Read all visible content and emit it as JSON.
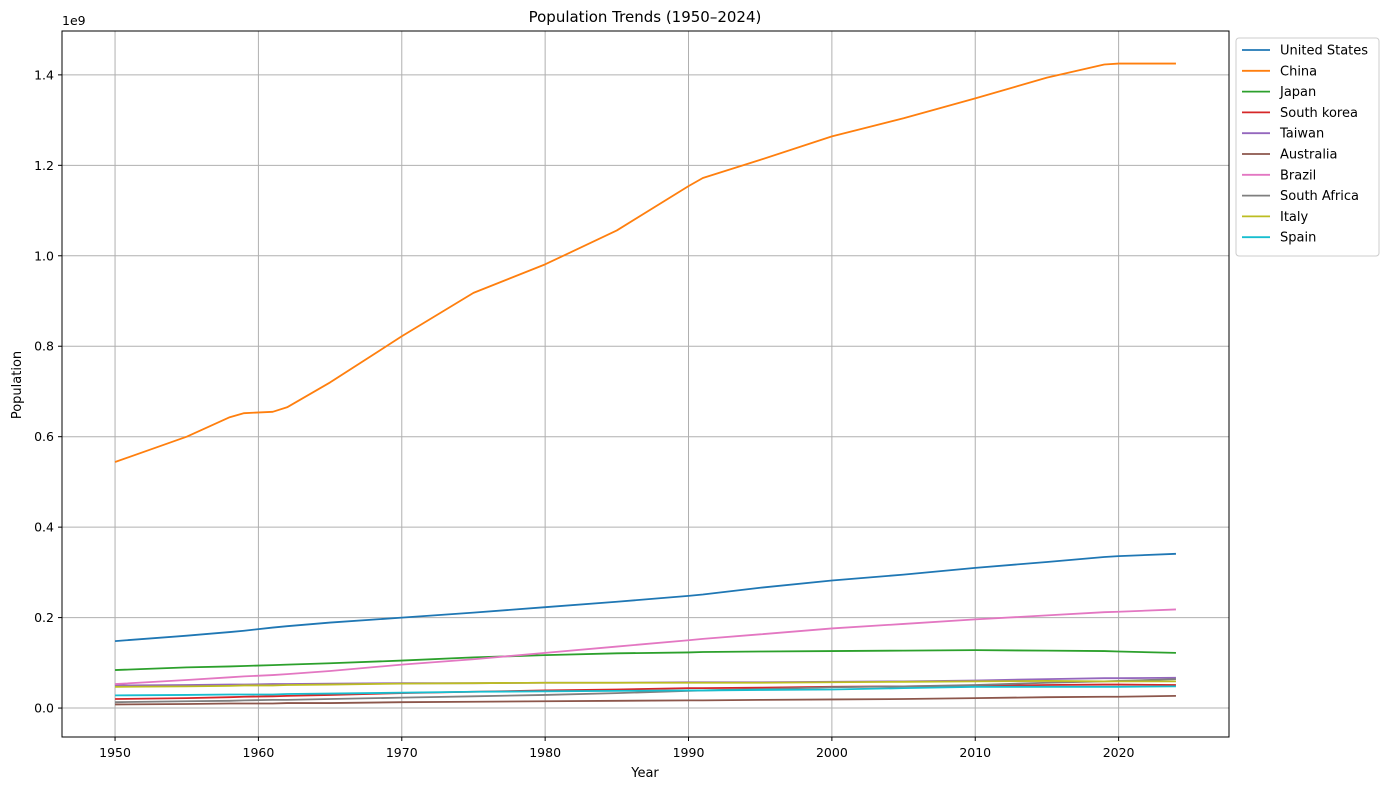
{
  "chart_data": {
    "type": "line",
    "title": "Population Trends (1950–2024)",
    "xlabel": "Year",
    "ylabel": "Population",
    "y_offset_text": "1e9",
    "xlim": [
      1946.3,
      2027.7
    ],
    "ylim": [
      -0.064,
      1.497
    ],
    "y_multiplier": 1000000000,
    "x_ticks": [
      1950,
      1960,
      1970,
      1980,
      1990,
      2000,
      2010,
      2020
    ],
    "x_tick_labels": [
      "1950",
      "1960",
      "1970",
      "1980",
      "1990",
      "2000",
      "2010",
      "2020"
    ],
    "y_ticks": [
      0.0,
      0.2,
      0.4,
      0.6,
      0.8,
      1.0,
      1.2,
      1.4
    ],
    "y_tick_labels": [
      "0.0",
      "0.2",
      "0.4",
      "0.6",
      "0.8",
      "1.0",
      "1.2",
      "1.4"
    ],
    "grid": true,
    "legend_position": "outside-top-right",
    "x": [
      1950,
      1955,
      1958,
      1959,
      1961,
      1962,
      1965,
      1970,
      1975,
      1980,
      1985,
      1990,
      1991,
      1995,
      2000,
      2005,
      2010,
      2015,
      2019,
      2020,
      2024
    ],
    "series": [
      {
        "name": "United States",
        "color": "#1f77b4",
        "values": [
          0.148,
          0.16,
          0.168,
          0.171,
          0.178,
          0.181,
          0.189,
          0.2,
          0.211,
          0.223,
          0.235,
          0.248,
          0.251,
          0.266,
          0.282,
          0.295,
          0.31,
          0.323,
          0.334,
          0.336,
          0.341
        ]
      },
      {
        "name": "China",
        "color": "#ff7f0e",
        "values": [
          0.544,
          0.6,
          0.643,
          0.652,
          0.655,
          0.665,
          0.72,
          0.822,
          0.918,
          0.981,
          1.056,
          1.154,
          1.172,
          1.212,
          1.264,
          1.304,
          1.348,
          1.394,
          1.423,
          1.425,
          1.425
        ]
      },
      {
        "name": "Japan",
        "color": "#2ca02c",
        "values": [
          0.084,
          0.09,
          0.092,
          0.093,
          0.095,
          0.096,
          0.099,
          0.105,
          0.112,
          0.117,
          0.121,
          0.123,
          0.124,
          0.125,
          0.126,
          0.127,
          0.128,
          0.127,
          0.126,
          0.125,
          0.122
        ]
      },
      {
        "name": "South korea",
        "color": "#d62728",
        "values": [
          0.02,
          0.022,
          0.024,
          0.025,
          0.026,
          0.027,
          0.029,
          0.033,
          0.036,
          0.039,
          0.041,
          0.044,
          0.044,
          0.045,
          0.047,
          0.048,
          0.049,
          0.051,
          0.052,
          0.052,
          0.051
        ]
      },
      {
        "name": "Taiwan",
        "color": "#9467bd",
        "values": [
          0.05,
          0.051,
          0.052,
          0.052,
          0.053,
          0.053,
          0.054,
          0.055,
          0.055,
          0.056,
          0.056,
          0.057,
          0.057,
          0.057,
          0.058,
          0.059,
          0.061,
          0.064,
          0.066,
          0.066,
          0.067
        ]
      },
      {
        "name": "Australia",
        "color": "#8c564b",
        "values": [
          0.008,
          0.009,
          0.01,
          0.01,
          0.01,
          0.011,
          0.011,
          0.013,
          0.014,
          0.015,
          0.016,
          0.017,
          0.017,
          0.018,
          0.019,
          0.02,
          0.022,
          0.024,
          0.025,
          0.025,
          0.027
        ]
      },
      {
        "name": "Brazil",
        "color": "#e377c2",
        "values": [
          0.053,
          0.062,
          0.068,
          0.07,
          0.073,
          0.075,
          0.082,
          0.096,
          0.108,
          0.122,
          0.136,
          0.15,
          0.153,
          0.163,
          0.176,
          0.186,
          0.196,
          0.205,
          0.212,
          0.213,
          0.218
        ]
      },
      {
        "name": "South Africa",
        "color": "#7f7f7f",
        "values": [
          0.013,
          0.015,
          0.016,
          0.017,
          0.018,
          0.018,
          0.02,
          0.023,
          0.026,
          0.029,
          0.033,
          0.038,
          0.039,
          0.042,
          0.046,
          0.048,
          0.051,
          0.056,
          0.059,
          0.06,
          0.064
        ]
      },
      {
        "name": "Italy",
        "color": "#bcbd22",
        "values": [
          0.047,
          0.048,
          0.049,
          0.05,
          0.05,
          0.051,
          0.052,
          0.054,
          0.055,
          0.056,
          0.056,
          0.056,
          0.056,
          0.056,
          0.057,
          0.058,
          0.059,
          0.06,
          0.059,
          0.059,
          0.059
        ]
      },
      {
        "name": "Spain",
        "color": "#17becf",
        "values": [
          0.028,
          0.029,
          0.03,
          0.03,
          0.03,
          0.031,
          0.032,
          0.034,
          0.036,
          0.037,
          0.038,
          0.039,
          0.039,
          0.04,
          0.041,
          0.044,
          0.047,
          0.047,
          0.047,
          0.047,
          0.048
        ]
      }
    ]
  }
}
